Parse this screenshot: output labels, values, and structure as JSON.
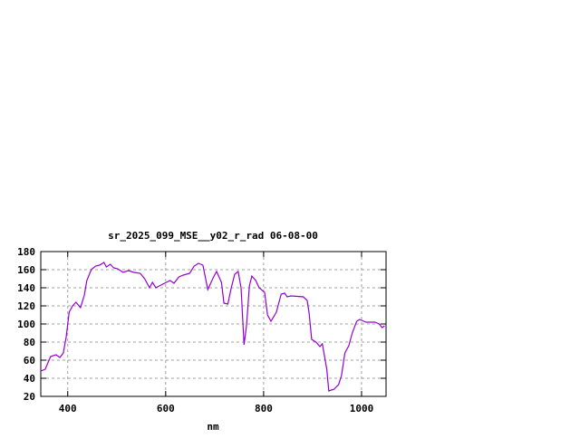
{
  "chart_data": {
    "type": "line",
    "title": "sr_2025_099_MSE__y02_r_rad 06-08-00",
    "xlabel": "nm",
    "ylabel": "",
    "xlim": [
      345,
      1050
    ],
    "ylim": [
      20,
      180
    ],
    "xticks": [
      400,
      600,
      800,
      1000
    ],
    "yticks": [
      20,
      40,
      60,
      80,
      100,
      120,
      140,
      160,
      180
    ],
    "grid": true,
    "line_color": "#9400d3",
    "series": [
      {
        "x": [
          345,
          354,
          365,
          376,
          384,
          391,
          397,
          403,
          410,
          417,
          426,
          434,
          439,
          448,
          457,
          465,
          474,
          479,
          487,
          494,
          502,
          513,
          524,
          535,
          548,
          557,
          567,
          573,
          580,
          594,
          609,
          617,
          627,
          636,
          649,
          658,
          667,
          676,
          686,
          697,
          704,
          714,
          719,
          727,
          734,
          741,
          748,
          754,
          760,
          765,
          771,
          776,
          784,
          791,
          802,
          808,
          815,
          826,
          836,
          843,
          848,
          856,
          881,
          889,
          893,
          898,
          907,
          915,
          920,
          929,
          933,
          944,
          953,
          959,
          966,
          974,
          981,
          990,
          996,
          1009,
          1027,
          1036,
          1042,
          1047
        ],
        "y": [
          48,
          50,
          64,
          66,
          63,
          68,
          86,
          113,
          120,
          124,
          118,
          132,
          148,
          160,
          164,
          165,
          168,
          163,
          166,
          162,
          161,
          157,
          159,
          157,
          156,
          150,
          140,
          146,
          140,
          144,
          148,
          145,
          152,
          154,
          156,
          164,
          167,
          165,
          138,
          151,
          158,
          146,
          123,
          122,
          140,
          155,
          158,
          140,
          77,
          98,
          142,
          153,
          148,
          140,
          135,
          110,
          103,
          113,
          133,
          134,
          130,
          131,
          130,
          126,
          111,
          83,
          80,
          75,
          78,
          50,
          26,
          28,
          33,
          43,
          68,
          76,
          90,
          103,
          105,
          102,
          102,
          100,
          96,
          98
        ]
      }
    ]
  }
}
